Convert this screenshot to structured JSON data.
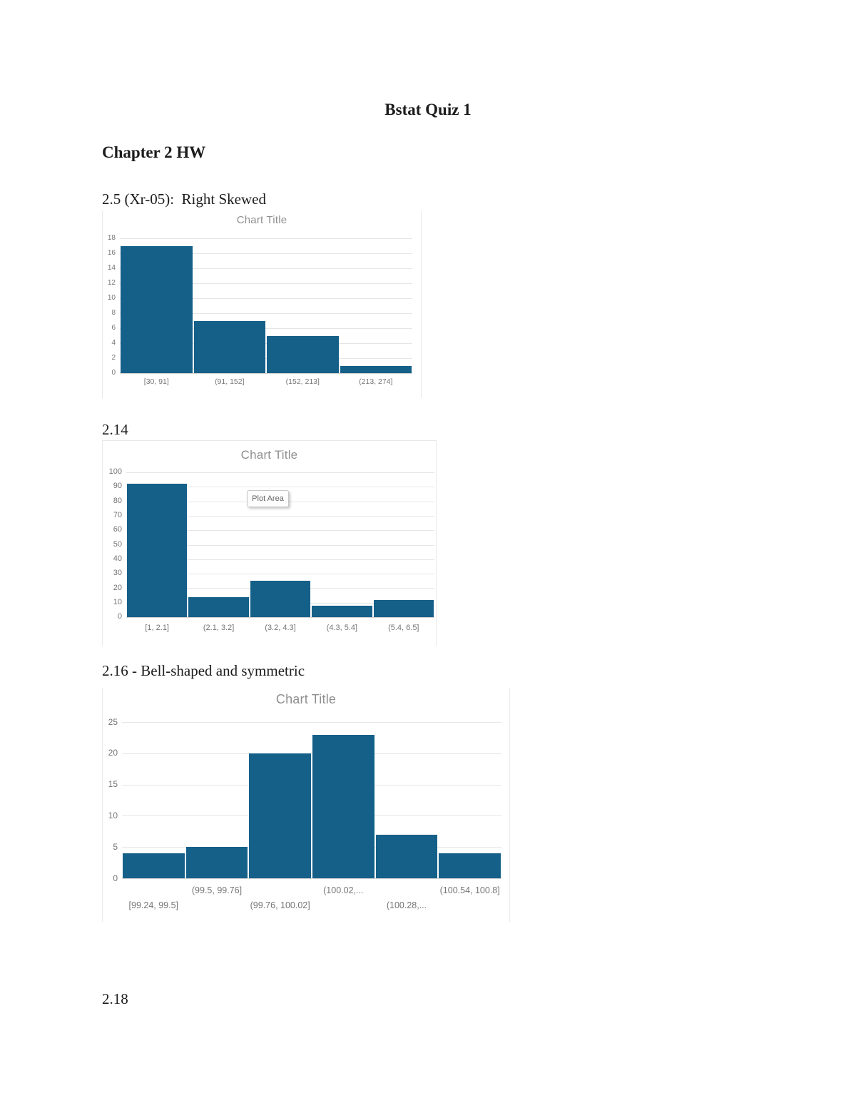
{
  "page": {
    "doc_title": "Bstat Quiz 1",
    "chapter_heading": "Chapter 2 HW",
    "item_2_5": "2.5 (Xr-05):  Right Skewed",
    "item_2_14": "2.14",
    "item_2_16": "2.16 - Bell-shaped and symmetric",
    "item_2_18": "2.18"
  },
  "colors": {
    "bar_fill": "#156089",
    "gridline": "#e6e6e6",
    "zero_line": "#d4d4d4",
    "axis_text": "#757575",
    "chart_title_text": "#8f8f8f",
    "chart_border": "#e9e9e9",
    "plot_area_tip_text": "#636363"
  },
  "chart_data": [
    {
      "type": "bar",
      "title": "Chart Title",
      "categories": [
        "[30, 91]",
        "(91, 152]",
        "(152, 213]",
        "(213, 274]"
      ],
      "values": [
        17,
        7,
        5,
        1
      ],
      "xlabel": "",
      "ylabel": "",
      "ylim": [
        0,
        18
      ],
      "ytick_step": 2,
      "grid": true,
      "legend": "none"
    },
    {
      "type": "bar",
      "title": "Chart Title",
      "plot_area_tooltip": "Plot Area",
      "categories": [
        "[1, 2.1]",
        "(2.1, 3.2]",
        "(3.2, 4.3]",
        "(4.3, 5.4]",
        "(5.4, 6.5]"
      ],
      "values": [
        92,
        14,
        25,
        8,
        12
      ],
      "xlabel": "",
      "ylabel": "",
      "ylim": [
        0,
        100
      ],
      "ytick_step": 10,
      "grid": true,
      "legend": "none"
    },
    {
      "type": "bar",
      "title": "Chart Title",
      "categories": [
        "[99.24, 99.5]",
        "(99.5, 99.76]",
        "(99.76, 100.02]",
        "(100.02,...",
        "(100.28,...",
        "(100.54, 100.8]"
      ],
      "values": [
        4,
        5,
        20,
        23,
        7,
        4
      ],
      "xlabel": "",
      "ylabel": "",
      "ylim": [
        0,
        25
      ],
      "ytick_step": 5,
      "grid": true,
      "legend": "none",
      "staggered_x_labels": true
    }
  ]
}
